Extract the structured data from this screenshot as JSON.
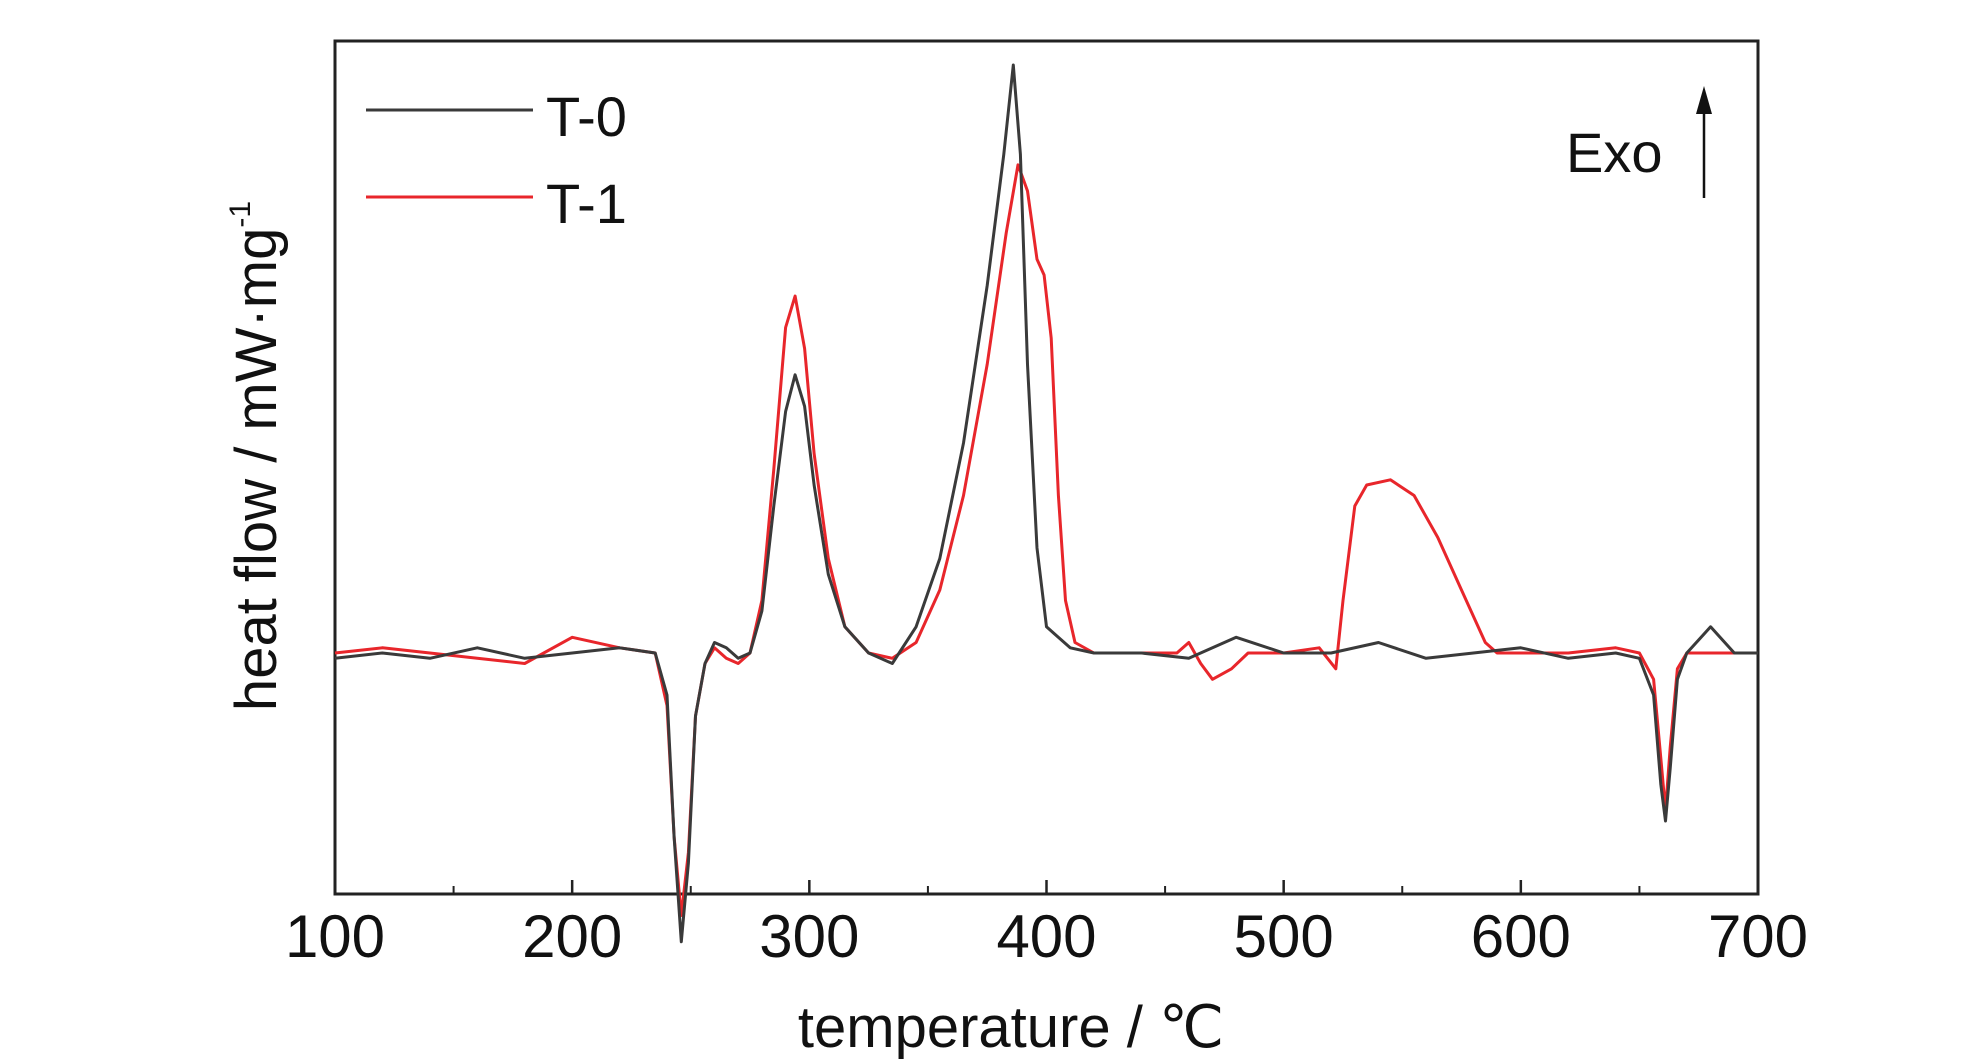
{
  "chart_data": {
    "type": "line",
    "title": "",
    "xlabel": "temperature / ℃",
    "ylabel_main": "heat flow / mW·mg",
    "ylabel_sup": "-1",
    "xlim": [
      100,
      700
    ],
    "ylim": [
      -1.0,
      1.0
    ],
    "x_ticks": [
      100,
      200,
      300,
      400,
      500,
      600,
      700
    ],
    "x_tick_labels": [
      "100",
      "200",
      "300",
      "400",
      "500",
      "600",
      "700"
    ],
    "y_ticks_shown": false,
    "grid": false,
    "legend_position": "top-left",
    "annotation": "Exo",
    "colors": {
      "T-0": "#3a3a3a",
      "T-1": "#e8262b"
    },
    "series": [
      {
        "name": "T-0",
        "color": "#3a3a3a",
        "points": [
          [
            100,
            -0.01
          ],
          [
            120,
            0.0
          ],
          [
            140,
            -0.01
          ],
          [
            160,
            0.01
          ],
          [
            180,
            -0.01
          ],
          [
            200,
            0.0
          ],
          [
            220,
            0.01
          ],
          [
            235,
            0.0
          ],
          [
            240,
            -0.08
          ],
          [
            243,
            -0.35
          ],
          [
            246,
            -0.55
          ],
          [
            249,
            -0.4
          ],
          [
            252,
            -0.12
          ],
          [
            256,
            -0.02
          ],
          [
            260,
            0.02
          ],
          [
            265,
            0.01
          ],
          [
            270,
            -0.01
          ],
          [
            275,
            0.0
          ],
          [
            280,
            0.08
          ],
          [
            285,
            0.28
          ],
          [
            290,
            0.46
          ],
          [
            294,
            0.53
          ],
          [
            298,
            0.47
          ],
          [
            302,
            0.32
          ],
          [
            308,
            0.15
          ],
          [
            315,
            0.05
          ],
          [
            325,
            0.0
          ],
          [
            335,
            -0.02
          ],
          [
            345,
            0.05
          ],
          [
            355,
            0.18
          ],
          [
            365,
            0.4
          ],
          [
            375,
            0.7
          ],
          [
            382,
            0.95
          ],
          [
            386,
            1.12
          ],
          [
            389,
            0.95
          ],
          [
            392,
            0.55
          ],
          [
            396,
            0.2
          ],
          [
            400,
            0.05
          ],
          [
            410,
            0.01
          ],
          [
            420,
            0.0
          ],
          [
            440,
            0.0
          ],
          [
            460,
            -0.01
          ],
          [
            480,
            0.03
          ],
          [
            500,
            0.0
          ],
          [
            520,
            0.0
          ],
          [
            540,
            0.02
          ],
          [
            560,
            -0.01
          ],
          [
            580,
            0.0
          ],
          [
            600,
            0.01
          ],
          [
            620,
            -0.01
          ],
          [
            640,
            0.0
          ],
          [
            650,
            -0.01
          ],
          [
            656,
            -0.08
          ],
          [
            659,
            -0.25
          ],
          [
            661,
            -0.32
          ],
          [
            663,
            -0.22
          ],
          [
            666,
            -0.05
          ],
          [
            670,
            0.0
          ],
          [
            680,
            0.05
          ],
          [
            690,
            0.0
          ],
          [
            700,
            0.0
          ]
        ]
      },
      {
        "name": "T-1",
        "color": "#e8262b",
        "points": [
          [
            100,
            0.0
          ],
          [
            120,
            0.01
          ],
          [
            140,
            0.0
          ],
          [
            160,
            -0.01
          ],
          [
            180,
            -0.02
          ],
          [
            200,
            0.03
          ],
          [
            220,
            0.01
          ],
          [
            235,
            0.0
          ],
          [
            240,
            -0.1
          ],
          [
            243,
            -0.35
          ],
          [
            246,
            -0.5
          ],
          [
            249,
            -0.38
          ],
          [
            252,
            -0.12
          ],
          [
            256,
            -0.02
          ],
          [
            260,
            0.01
          ],
          [
            265,
            -0.01
          ],
          [
            270,
            -0.02
          ],
          [
            275,
            0.0
          ],
          [
            280,
            0.1
          ],
          [
            285,
            0.35
          ],
          [
            290,
            0.62
          ],
          [
            294,
            0.68
          ],
          [
            298,
            0.58
          ],
          [
            302,
            0.38
          ],
          [
            308,
            0.18
          ],
          [
            315,
            0.05
          ],
          [
            325,
            0.0
          ],
          [
            335,
            -0.01
          ],
          [
            345,
            0.02
          ],
          [
            355,
            0.12
          ],
          [
            365,
            0.3
          ],
          [
            375,
            0.55
          ],
          [
            383,
            0.8
          ],
          [
            388,
            0.93
          ],
          [
            392,
            0.88
          ],
          [
            396,
            0.75
          ],
          [
            399,
            0.72
          ],
          [
            402,
            0.6
          ],
          [
            405,
            0.3
          ],
          [
            408,
            0.1
          ],
          [
            412,
            0.02
          ],
          [
            420,
            0.0
          ],
          [
            440,
            0.0
          ],
          [
            455,
            0.0
          ],
          [
            460,
            0.02
          ],
          [
            465,
            -0.02
          ],
          [
            470,
            -0.05
          ],
          [
            478,
            -0.03
          ],
          [
            485,
            0.0
          ],
          [
            500,
            0.0
          ],
          [
            515,
            0.01
          ],
          [
            522,
            -0.03
          ],
          [
            525,
            0.1
          ],
          [
            530,
            0.28
          ],
          [
            535,
            0.32
          ],
          [
            545,
            0.33
          ],
          [
            555,
            0.3
          ],
          [
            565,
            0.22
          ],
          [
            575,
            0.12
          ],
          [
            585,
            0.02
          ],
          [
            590,
            0.0
          ],
          [
            600,
            0.0
          ],
          [
            620,
            0.0
          ],
          [
            640,
            0.01
          ],
          [
            650,
            0.0
          ],
          [
            656,
            -0.05
          ],
          [
            659,
            -0.2
          ],
          [
            661,
            -0.3
          ],
          [
            663,
            -0.18
          ],
          [
            666,
            -0.03
          ],
          [
            670,
            0.0
          ],
          [
            700,
            0.0
          ]
        ]
      }
    ]
  }
}
